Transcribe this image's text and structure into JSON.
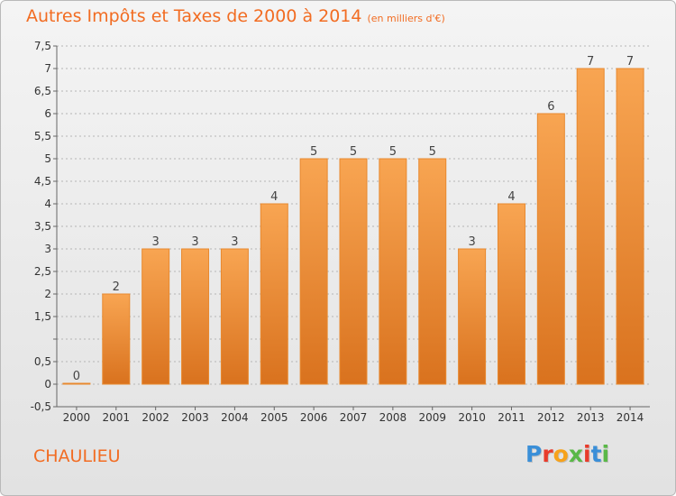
{
  "header": {
    "title": "Autres Impôts et Taxes de 2000 à 2014",
    "unit": "(en milliers d'€)"
  },
  "footer": {
    "commune": "CHAULIEU",
    "logo_text": "Proxiti",
    "logo_colors": [
      "#3a8fd8",
      "#e83b2b",
      "#f7a21b",
      "#59b847",
      "#e83b2b",
      "#3a8fd8",
      "#59b847"
    ]
  },
  "colors": {
    "title": "#f26c22",
    "bar_top": "#f8a552",
    "bar_bottom": "#d9721e",
    "bar_stroke": "#e8892f",
    "axis_text": "#333333",
    "grid": "#b5b5b5"
  },
  "chart_data": {
    "type": "bar",
    "title": "Autres Impôts et Taxes de 2000 à 2014",
    "subtitle": "(en milliers d'€)",
    "xlabel": "",
    "ylabel": "",
    "categories": [
      "2000",
      "2001",
      "2002",
      "2003",
      "2004",
      "2005",
      "2006",
      "2007",
      "2008",
      "2009",
      "2010",
      "2011",
      "2012",
      "2013",
      "2014"
    ],
    "values": [
      0,
      2,
      3,
      3,
      3,
      4,
      5,
      5,
      5,
      5,
      3,
      4,
      6,
      7,
      7
    ],
    "data_labels": [
      "0",
      "2",
      "3",
      "3",
      "3",
      "4",
      "5",
      "5",
      "5",
      "5",
      "3",
      "4",
      "6",
      "7",
      "7"
    ],
    "ylim": [
      -0.5,
      7.5
    ],
    "yticks": [
      -0.5,
      0,
      0.5,
      1,
      1.5,
      2,
      2.5,
      3,
      3.5,
      4,
      4.5,
      5,
      5.5,
      6,
      6.5,
      7,
      7.5
    ],
    "ytick_labels": [
      "-0,5",
      "0",
      "0,5",
      "",
      "1,5",
      "2",
      "2,5",
      "3",
      "3,5",
      "4",
      "4,5",
      "5",
      "5,5",
      "6",
      "6,5",
      "7",
      "7,5"
    ],
    "grid": "horizontal dashed",
    "legend": "none"
  }
}
